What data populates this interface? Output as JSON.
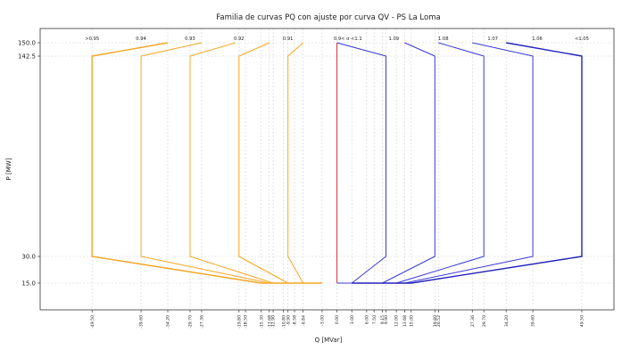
{
  "chart_data": {
    "type": "line",
    "title": "Familia de curvas PQ con ajuste por curva QV - PS La Loma",
    "xlabel": "Q [MVar]",
    "ylabel": "P [MW]",
    "xlim": [
      -60,
      56
    ],
    "ylim": [
      0,
      158
    ],
    "y_ticks": [
      15.0,
      30.0,
      142.5,
      150.0
    ],
    "y_tick_labels": [
      "15.0",
      "30.0",
      "142.5",
      "150.0"
    ],
    "x_ticks": [
      -49.5,
      -39.6,
      -34.2,
      -29.7,
      -27.36,
      -19.8,
      -18.5,
      -15.3,
      -13.68,
      -12.9,
      -10.8,
      -9.9,
      -8.58,
      -6.84,
      -3.0,
      0.0,
      3.0,
      6.0,
      7.5,
      9.15,
      9.9,
      12.0,
      13.68,
      15.0,
      19.8,
      20.52,
      27.36,
      29.7,
      34.2,
      39.6,
      49.5
    ],
    "x_tick_labels": [
      "-49.50",
      "-39.60",
      "-34.20",
      "-29.70",
      "-27.36",
      "-19.80",
      "-18.50",
      "-15.30",
      "-13.68",
      "-12.90",
      "-10.80",
      "-9.90",
      "-8.58",
      "-6.84",
      "-3.00",
      "0.00",
      "3.00",
      "6.00",
      "7.50",
      "9.15",
      "9.90",
      "12.00",
      "13.68",
      "15.00",
      "19.80",
      "20.52",
      "27.36",
      "29.70",
      "34.20",
      "39.60",
      "49.50"
    ],
    "grid": true,
    "colors": {
      "capacitive": "#f5a623",
      "inductive": "#3a3ad6",
      "unity": "#d0312d"
    },
    "series": [
      {
        "name": "",
        "color": "#f5a623",
        "points": [
          [
            -34.2,
            150
          ],
          [
            -49.5,
            142.5
          ],
          [
            -49.5,
            30
          ],
          [
            -15.3,
            15
          ],
          [
            -3.0,
            15
          ]
        ]
      },
      {
        "name": "",
        "color": "#f5a623",
        "points": [
          [
            -27.36,
            150
          ],
          [
            -39.6,
            142.5
          ],
          [
            -39.6,
            30
          ],
          [
            -13.68,
            15
          ],
          [
            -3.0,
            15
          ]
        ]
      },
      {
        "name": "",
        "color": "#f5a623",
        "points": [
          [
            -20.52,
            150
          ],
          [
            -29.7,
            142.5
          ],
          [
            -29.7,
            30
          ],
          [
            -12.9,
            15
          ],
          [
            -3.0,
            15
          ]
        ]
      },
      {
        "name": "",
        "color": "#f5a623",
        "points": [
          [
            -13.68,
            150
          ],
          [
            -19.8,
            142.5
          ],
          [
            -19.8,
            30
          ],
          [
            -9.9,
            15
          ],
          [
            -3.0,
            15
          ]
        ]
      },
      {
        "name": "",
        "color": "#f5a623",
        "points": [
          [
            -6.84,
            150
          ],
          [
            -9.9,
            142.5
          ],
          [
            -9.9,
            30
          ],
          [
            -6.84,
            15
          ],
          [
            -3.0,
            15
          ]
        ]
      },
      {
        "name": "",
        "color": "#d0312d",
        "points": [
          [
            0.0,
            150
          ],
          [
            0.0,
            15
          ]
        ]
      },
      {
        "name": "",
        "color": "#3a3ad6",
        "points": [
          [
            0.0,
            150
          ],
          [
            9.9,
            142.5
          ],
          [
            9.9,
            30
          ],
          [
            3.0,
            15
          ],
          [
            0.0,
            15
          ]
        ]
      },
      {
        "name": "",
        "color": "#3a3ad6",
        "points": [
          [
            13.68,
            150
          ],
          [
            19.8,
            142.5
          ],
          [
            19.8,
            30
          ],
          [
            9.15,
            15
          ],
          [
            3.0,
            15
          ]
        ]
      },
      {
        "name": "",
        "color": "#3a3ad6",
        "points": [
          [
            20.52,
            150
          ],
          [
            29.7,
            142.5
          ],
          [
            29.7,
            30
          ],
          [
            12.0,
            15
          ],
          [
            3.0,
            15
          ]
        ]
      },
      {
        "name": "",
        "color": "#3a3ad6",
        "points": [
          [
            27.36,
            150
          ],
          [
            39.6,
            142.5
          ],
          [
            39.6,
            30
          ],
          [
            13.68,
            15
          ],
          [
            3.0,
            15
          ]
        ]
      },
      {
        "name": "",
        "color": "#2222bb",
        "points": [
          [
            34.2,
            150
          ],
          [
            49.5,
            142.5
          ],
          [
            49.5,
            30
          ],
          [
            15.0,
            15
          ],
          [
            3.0,
            15
          ]
        ]
      }
    ],
    "annotations": [
      {
        "text": ">0.95",
        "x": -49.5
      },
      {
        "text": "0.94",
        "x": -39.6
      },
      {
        "text": "0.93",
        "x": -29.7
      },
      {
        "text": "0.92",
        "x": -19.8
      },
      {
        "text": "0.91",
        "x": -9.9
      },
      {
        "text": "0.9< σ <1.1",
        "x": 2.2
      },
      {
        "text": "1.09",
        "x": 11.5
      },
      {
        "text": "1.08",
        "x": 21.5
      },
      {
        "text": "1.07",
        "x": 31.5
      },
      {
        "text": "1.06",
        "x": 40.5
      },
      {
        "text": "<1.05",
        "x": 49.5
      }
    ]
  }
}
